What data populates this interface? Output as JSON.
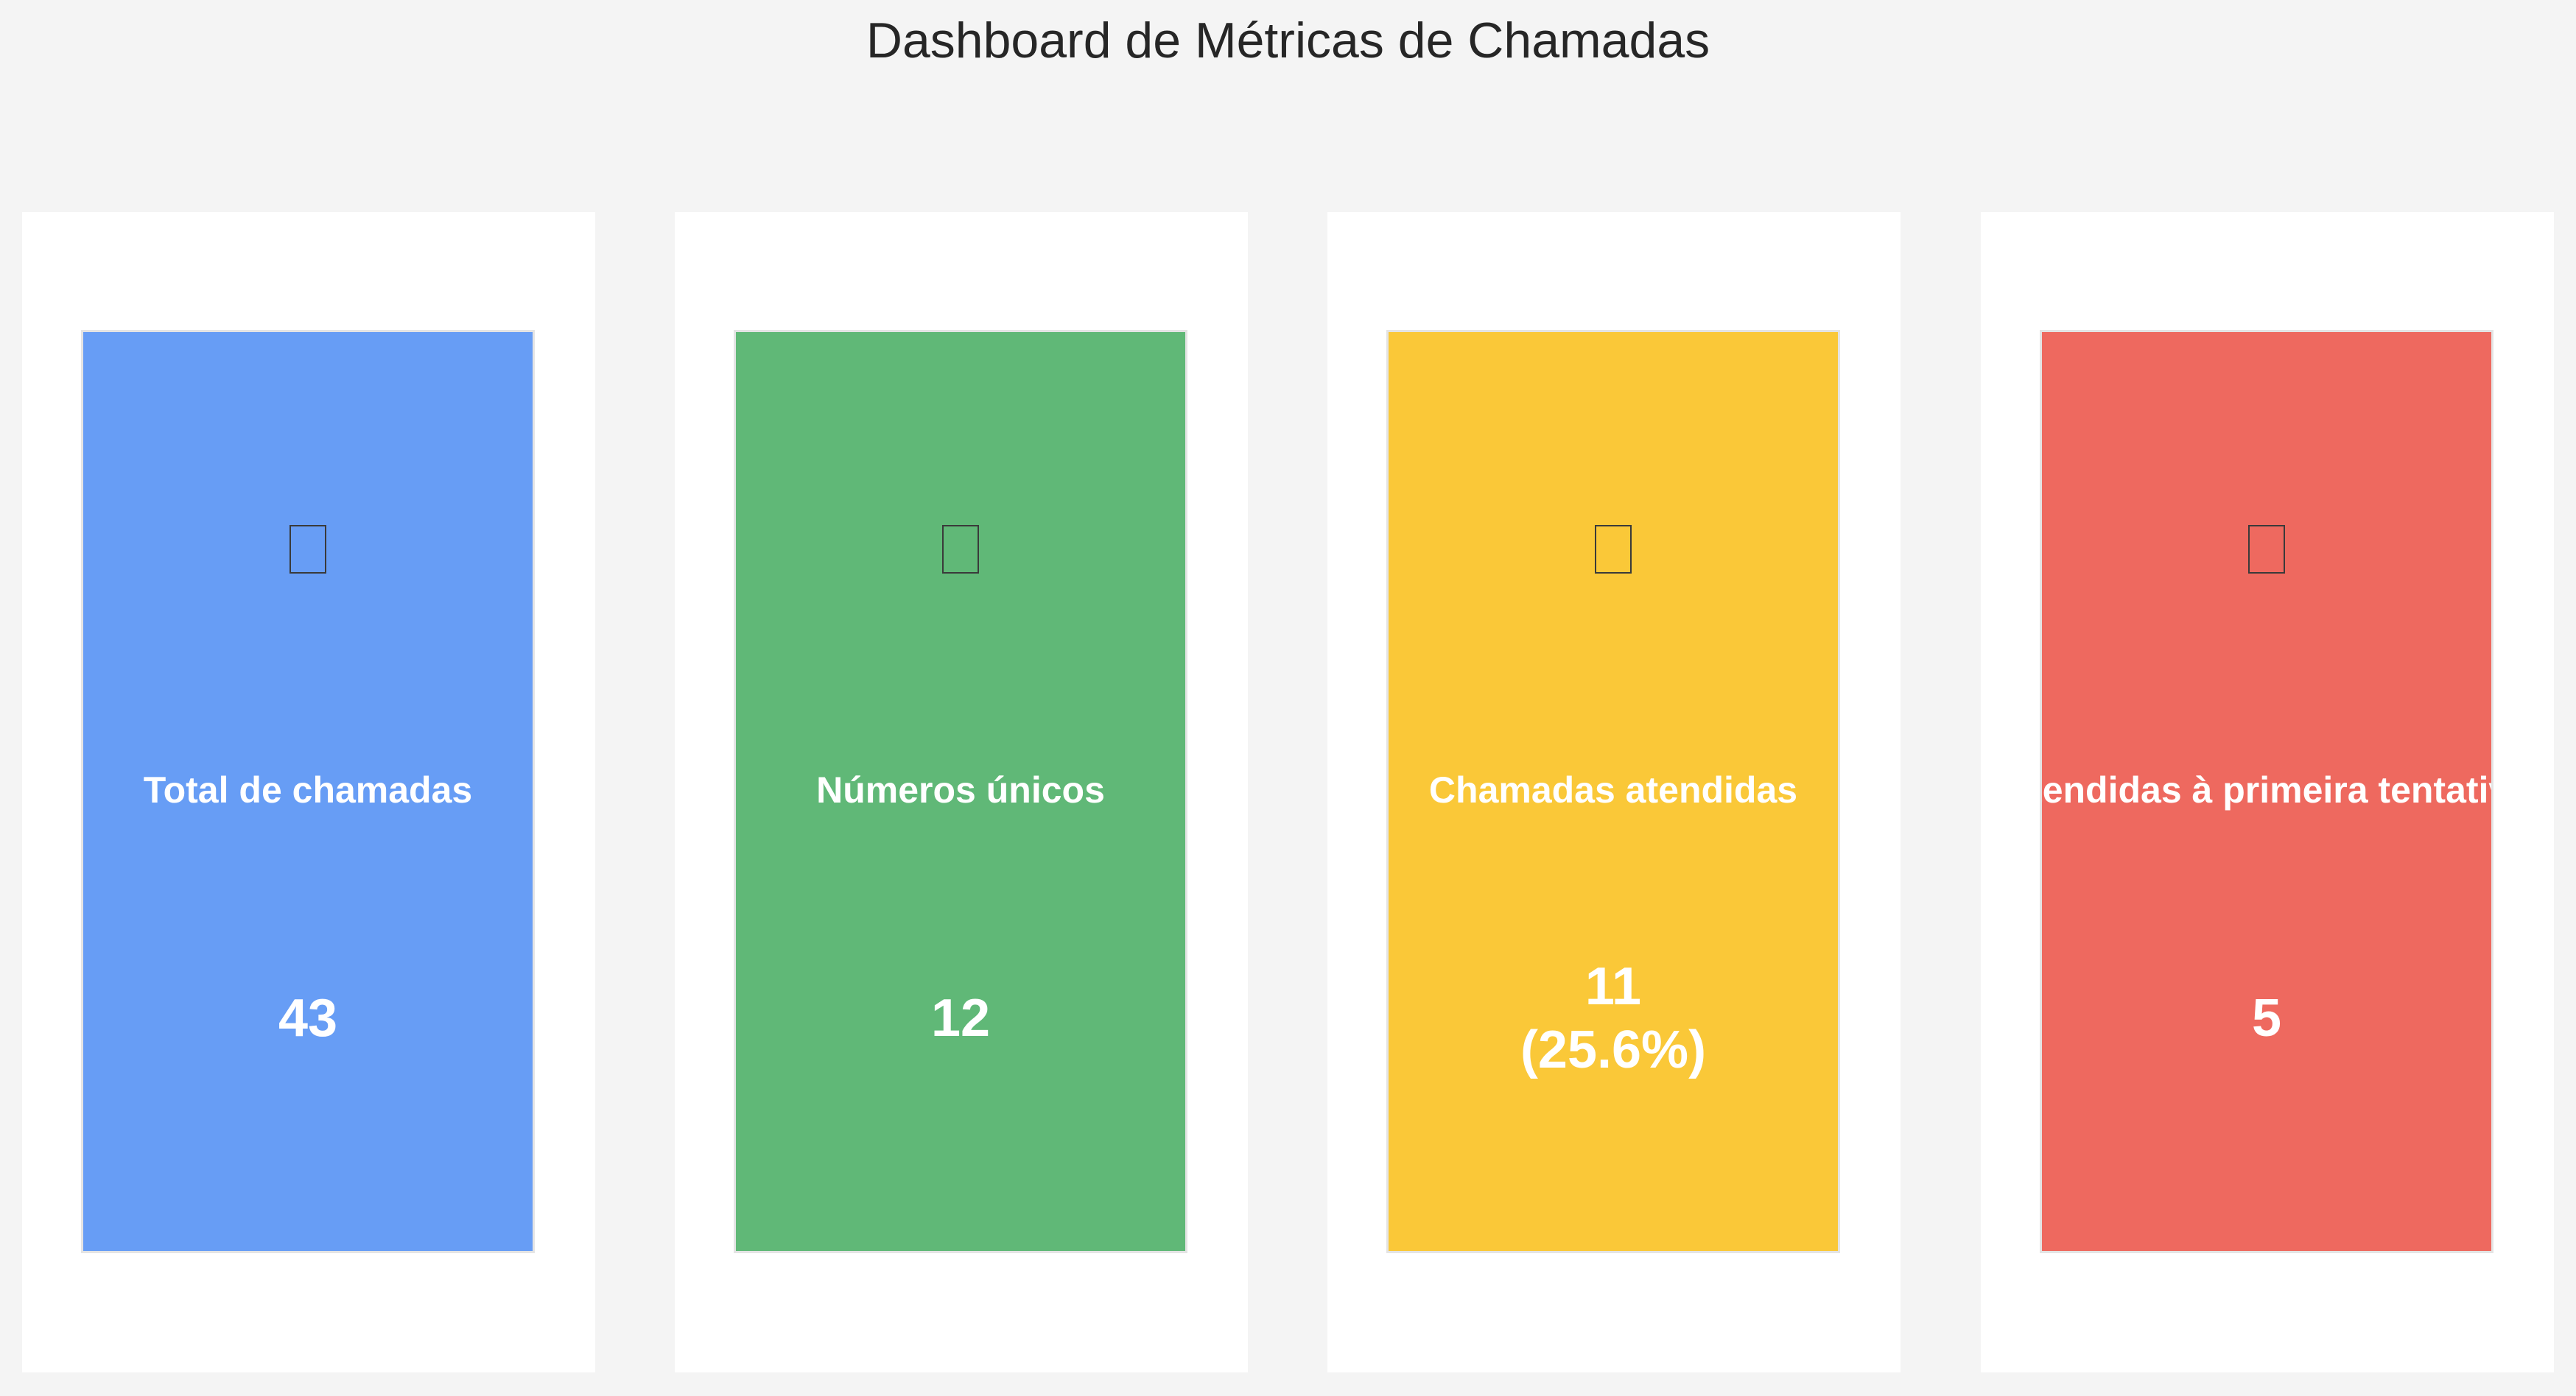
{
  "dashboard": {
    "title": "Dashboard de Métricas de Chamadas"
  },
  "cards": [
    {
      "icon": "phone-icon",
      "label": "Total de chamadas",
      "value": "43",
      "color": "#679df5"
    },
    {
      "icon": "hash-icon",
      "label": "Números únicos",
      "value": "12",
      "color": "#60b877"
    },
    {
      "icon": "check-icon",
      "label": "Chamadas atendidas",
      "value": "11\n(25.6%)",
      "color": "#fac838"
    },
    {
      "icon": "target-icon",
      "label": "Atendidas à primeira tentativa",
      "value": "5",
      "color": "#ee695f"
    }
  ]
}
